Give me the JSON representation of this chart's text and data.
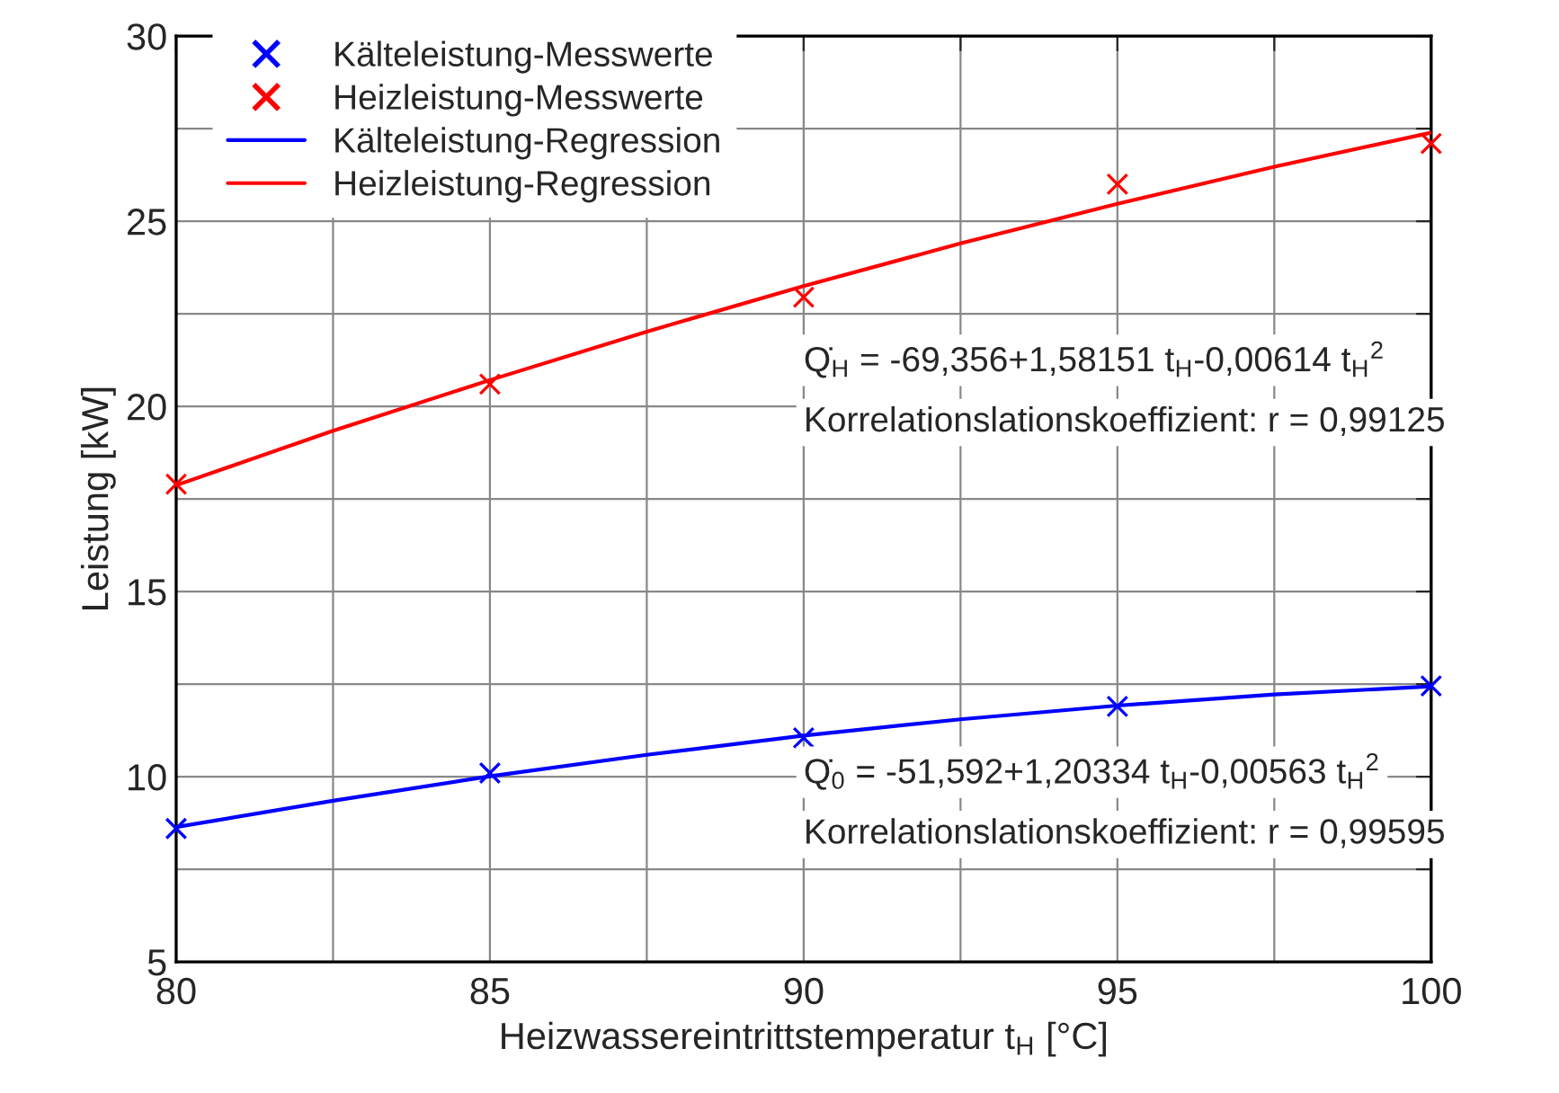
{
  "chart_data": {
    "type": "scatter",
    "xlabel": "Heizwassereintrittstemperatur t$_{H}$ [°C]",
    "ylabel": "Leistung [kW]",
    "xlim": [
      80,
      100
    ],
    "ylim": [
      5,
      30
    ],
    "xticks": [
      80,
      {
        "value": 82.5,
        "label": null
      },
      85,
      {
        "value": 87.5,
        "label": null
      },
      90,
      {
        "value": 92.5,
        "label": null
      },
      95,
      {
        "value": 97.5,
        "label": null
      },
      100
    ],
    "yticks": [
      5,
      {
        "value": 7.5,
        "label": null
      },
      10,
      {
        "value": 12.5,
        "label": null
      },
      15,
      {
        "value": 17.5,
        "label": null
      },
      20,
      {
        "value": 22.5,
        "label": null
      },
      25,
      {
        "value": 27.5,
        "label": null
      },
      30
    ],
    "grid": true,
    "legend": "top left",
    "series": [
      {
        "name": "Kälteleistung-Messwerte",
        "marker": "cross",
        "color": "#0000ff",
        "x": [
          80,
          85,
          90,
          95,
          100
        ],
        "values": [
          8.6,
          10.1,
          11.05,
          11.9,
          12.45
        ]
      },
      {
        "name": "Heizleistung-Messwerte",
        "marker": "cross",
        "color": "#ff0000",
        "x": [
          80,
          85,
          90,
          95,
          100
        ],
        "values": [
          17.9,
          20.6,
          22.95,
          26.0,
          27.1
        ]
      },
      {
        "name": "Kälteleistung-Regression",
        "type": "line",
        "marker": "none",
        "line_style": "solid",
        "color": "#0000ff",
        "x": [
          80,
          82.5,
          85,
          87.5,
          90,
          92.5,
          95,
          97.5,
          100
        ],
        "values": [
          8.64,
          9.35,
          10.01,
          10.59,
          11.11,
          11.55,
          11.92,
          12.22,
          12.44
        ]
      },
      {
        "name": "Heizleistung-Regression",
        "type": "line",
        "marker": "none",
        "line_style": "solid",
        "color": "#ff0000",
        "x": [
          80,
          82.5,
          85,
          87.5,
          90,
          92.5,
          95,
          97.5,
          100
        ],
        "values": [
          17.87,
          19.34,
          20.71,
          22.02,
          23.25,
          24.4,
          25.47,
          26.47,
          27.39
        ]
      }
    ],
    "annotations": [
      "Q̇$_{H}$ = -69,356+1,58151 t$_{H}$-0,00614 t$_{H}$$^{2}$",
      "Korrelationslationskoeffizient: r = 0,99125",
      "Q̇$_{0}$ = -51,592+1,20334 t$_{H}$-0,00563 t$_{H}$$^{2}$",
      "Korrelationslationskoeffizient: r = 0,99595"
    ]
  }
}
